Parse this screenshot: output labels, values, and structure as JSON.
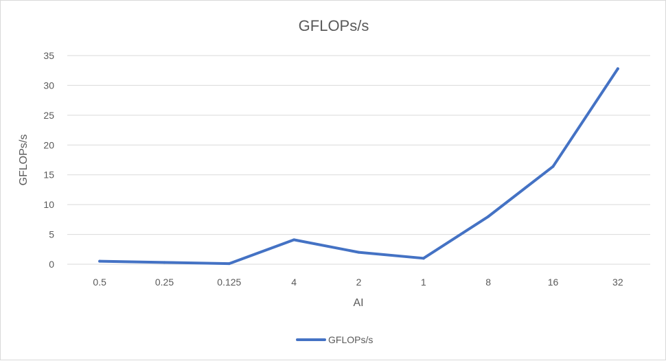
{
  "chart_data": {
    "type": "line",
    "title": "GFLOPs/s",
    "xlabel": "AI",
    "ylabel": "GFLOPs/s",
    "categories": [
      "0.5",
      "0.25",
      "0.125",
      "4",
      "2",
      "1",
      "8",
      "16",
      "32"
    ],
    "series": [
      {
        "name": "GFLOPs/s",
        "values": [
          0.5,
          0.3,
          0.1,
          4.1,
          2.0,
          1.0,
          8.0,
          16.4,
          32.8
        ],
        "color": "#4472C4"
      }
    ],
    "ylim": [
      0,
      35
    ],
    "yticks": [
      "0",
      "5",
      "10",
      "15",
      "20",
      "25",
      "30",
      "35"
    ],
    "grid": true,
    "legend_position": "bottom",
    "colors": {
      "grid": "#d9d9d9",
      "text": "#595959",
      "series": "#4472C4"
    }
  }
}
